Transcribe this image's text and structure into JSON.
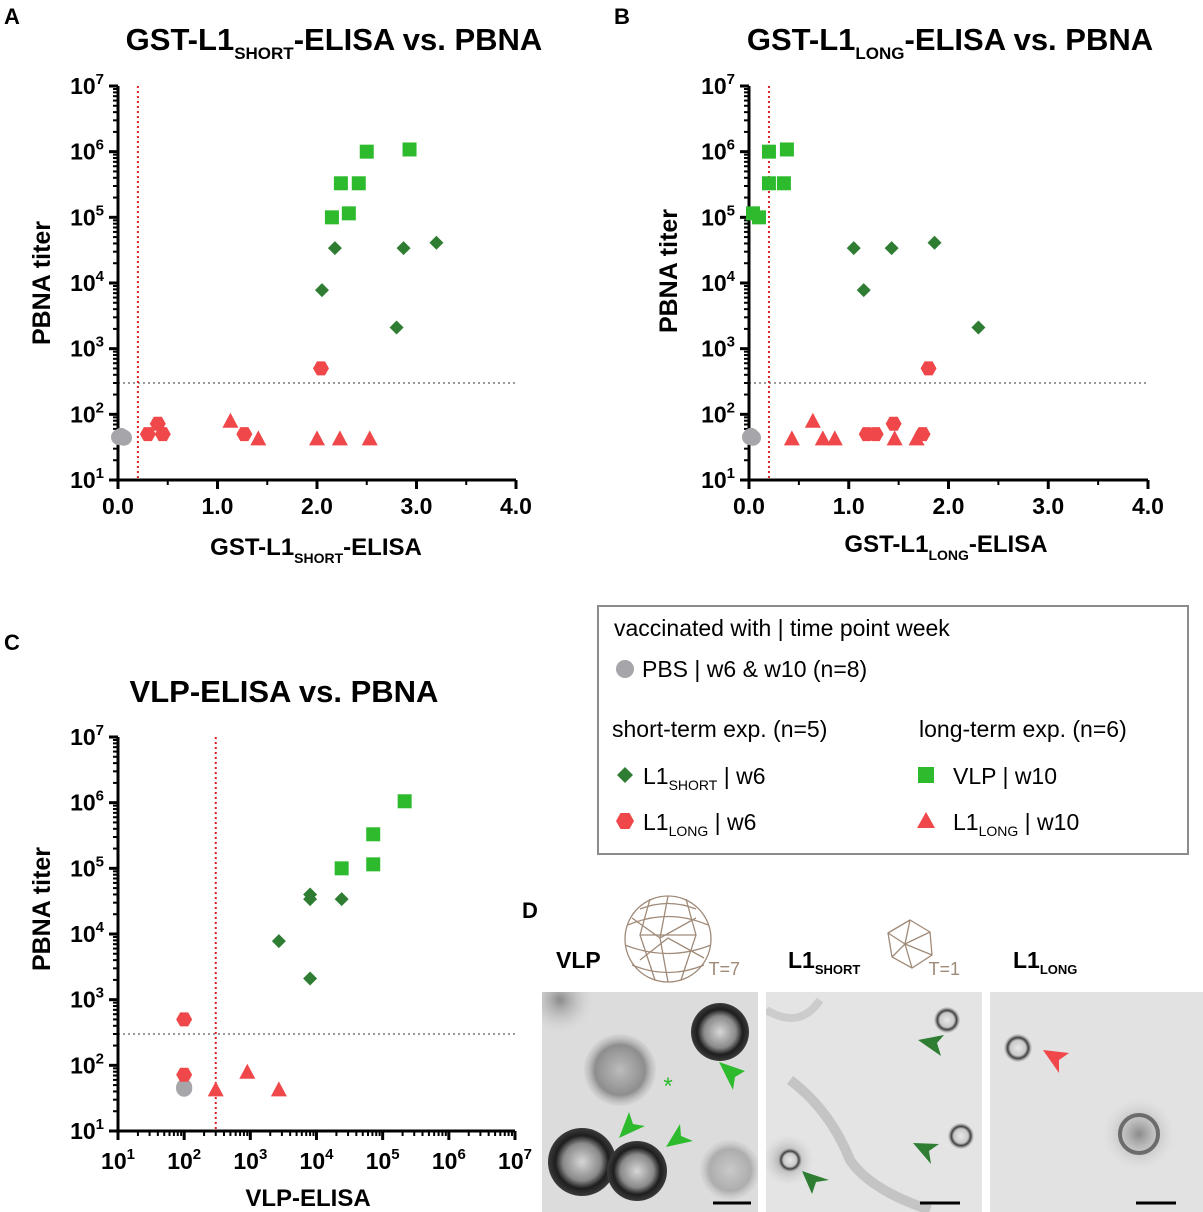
{
  "figure": {
    "panel_labels": [
      "A",
      "B",
      "C",
      "D"
    ],
    "colors": {
      "pbs": "#a6a6aa",
      "l1short": "#2e7d32",
      "vlp": "#2dbb2d",
      "l1long": "#f0484a",
      "cutoff_x": "#e02020",
      "cutoff_y": "#9a9a9a",
      "capsid": "#a08a78"
    }
  },
  "chart_data": [
    {
      "id": "A",
      "type": "scatter",
      "title_main": "GST-L1",
      "title_sub": "SHORT",
      "title_tail": "-ELISA vs. PBNA",
      "xlabel_main": "GST-L1",
      "xlabel_sub": "SHORT",
      "xlabel_tail": "-ELISA",
      "ylabel": "PBNA titer",
      "xscale": "linear",
      "xlim": [
        0,
        4
      ],
      "xticks": [
        0,
        1,
        2,
        3,
        4
      ],
      "xtick_labels": [
        "0.0",
        "1.0",
        "2.0",
        "3.0",
        "4.0"
      ],
      "yscale": "log",
      "ylim_exp": [
        1,
        7
      ],
      "yticks_exp": [
        1,
        2,
        3,
        4,
        5,
        6,
        7
      ],
      "cutoff_x": 0.2,
      "cutoff_y": 300,
      "series": [
        {
          "name": "PBS",
          "marker": "circle",
          "color": "#a6a6aa",
          "points": [
            [
              0.01,
              45
            ],
            [
              0.03,
              47
            ],
            [
              0.05,
              45
            ],
            [
              0.06,
              44
            ]
          ]
        },
        {
          "name": "L1SHORT w6",
          "marker": "diamond",
          "color": "#2e7d32",
          "points": [
            [
              2.05,
              7800
            ],
            [
              2.18,
              34000
            ],
            [
              2.8,
              2100
            ],
            [
              2.87,
              34000
            ],
            [
              3.2,
              41000
            ]
          ]
        },
        {
          "name": "L1LONG w6",
          "marker": "hexagon",
          "color": "#f0484a",
          "points": [
            [
              0.3,
              50
            ],
            [
              0.4,
              72
            ],
            [
              0.45,
              50
            ],
            [
              1.27,
              50
            ],
            [
              2.04,
              500
            ]
          ]
        },
        {
          "name": "VLP w10",
          "marker": "square",
          "color": "#2dbb2d",
          "points": [
            [
              2.15,
              100000
            ],
            [
              2.24,
              330000
            ],
            [
              2.32,
              115000
            ],
            [
              2.42,
              330000
            ],
            [
              2.5,
              1000000
            ],
            [
              2.93,
              1080000
            ]
          ]
        },
        {
          "name": "L1LONG w10",
          "marker": "triangle",
          "color": "#f0484a",
          "points": [
            [
              1.13,
              80
            ],
            [
              1.41,
              43
            ],
            [
              2.0,
              43
            ],
            [
              2.23,
              43
            ],
            [
              2.53,
              43
            ]
          ]
        }
      ]
    },
    {
      "id": "B",
      "type": "scatter",
      "title_main": "GST-L1",
      "title_sub": "LONG",
      "title_tail": "-ELISA vs. PBNA",
      "xlabel_main": "GST-L1",
      "xlabel_sub": "LONG",
      "xlabel_tail": "-ELISA",
      "ylabel": "PBNA titer",
      "xscale": "linear",
      "xlim": [
        0,
        4
      ],
      "xticks": [
        0,
        1,
        2,
        3,
        4
      ],
      "xtick_labels": [
        "0.0",
        "1.0",
        "2.0",
        "3.0",
        "4.0"
      ],
      "yscale": "log",
      "ylim_exp": [
        1,
        7
      ],
      "yticks_exp": [
        1,
        2,
        3,
        4,
        5,
        6,
        7
      ],
      "cutoff_x": 0.2,
      "cutoff_y": 300,
      "series": [
        {
          "name": "PBS",
          "marker": "circle",
          "color": "#a6a6aa",
          "points": [
            [
              0.01,
              45
            ],
            [
              0.02,
              47
            ],
            [
              0.03,
              45
            ],
            [
              0.04,
              44
            ]
          ]
        },
        {
          "name": "L1SHORT w6",
          "marker": "diamond",
          "color": "#2e7d32",
          "points": [
            [
              1.05,
              34000
            ],
            [
              1.15,
              7800
            ],
            [
              1.43,
              34000
            ],
            [
              1.86,
              41000
            ],
            [
              2.3,
              2100
            ]
          ]
        },
        {
          "name": "L1LONG w6",
          "marker": "hexagon",
          "color": "#f0484a",
          "points": [
            [
              1.18,
              50
            ],
            [
              1.27,
              50
            ],
            [
              1.45,
              72
            ],
            [
              1.74,
              50
            ],
            [
              1.8,
              500
            ]
          ]
        },
        {
          "name": "VLP w10",
          "marker": "square",
          "color": "#2dbb2d",
          "points": [
            [
              0.04,
              115000
            ],
            [
              0.1,
              100000
            ],
            [
              0.2,
              330000
            ],
            [
              0.2,
              1000000
            ],
            [
              0.35,
              330000
            ],
            [
              0.38,
              1080000
            ]
          ]
        },
        {
          "name": "L1LONG w10",
          "marker": "triangle",
          "color": "#f0484a",
          "points": [
            [
              0.43,
              43
            ],
            [
              0.64,
              80
            ],
            [
              0.74,
              43
            ],
            [
              0.86,
              43
            ],
            [
              1.46,
              43
            ],
            [
              1.68,
              43
            ]
          ]
        }
      ]
    },
    {
      "id": "C",
      "type": "scatter",
      "title_main": "VLP-ELISA vs. PBNA",
      "title_sub": "",
      "title_tail": "",
      "xlabel_main": "VLP-ELISA",
      "xlabel_sub": "",
      "xlabel_tail": "",
      "ylabel": "PBNA titer",
      "xscale": "log",
      "xlim_exp": [
        1,
        7
      ],
      "xticks_exp": [
        1,
        2,
        3,
        4,
        5,
        6,
        7
      ],
      "yscale": "log",
      "ylim_exp": [
        1,
        7
      ],
      "yticks_exp": [
        1,
        2,
        3,
        4,
        5,
        6,
        7
      ],
      "cutoff_x": 300,
      "cutoff_y": 300,
      "series": [
        {
          "name": "PBS",
          "marker": "circle",
          "color": "#a6a6aa",
          "points": [
            [
              100,
              45
            ],
            [
              100,
              47
            ],
            [
              100,
              44
            ]
          ]
        },
        {
          "name": "L1SHORT w6",
          "marker": "diamond",
          "color": "#2e7d32",
          "points": [
            [
              2700,
              7800
            ],
            [
              8000,
              2100
            ],
            [
              8000,
              34000
            ],
            [
              8000,
              40000
            ],
            [
              24000,
              34000
            ]
          ]
        },
        {
          "name": "L1LONG w6",
          "marker": "hexagon",
          "color": "#f0484a",
          "points": [
            [
              100,
              500
            ],
            [
              100,
              72
            ]
          ]
        },
        {
          "name": "VLP w10",
          "marker": "square",
          "color": "#2dbb2d",
          "points": [
            [
              24000,
              100000
            ],
            [
              72000,
              115000
            ],
            [
              72000,
              330000
            ],
            [
              215000,
              1050000
            ]
          ]
        },
        {
          "name": "L1LONG w10",
          "marker": "triangle",
          "color": "#f0484a",
          "points": [
            [
              300,
              43
            ],
            [
              900,
              80
            ],
            [
              2700,
              43
            ]
          ]
        }
      ]
    }
  ],
  "legend": {
    "header": "vaccinated with | time point week",
    "pbs": "PBS | w6 & w10 (n=8)",
    "short_heading": "short-term exp. (n=5)",
    "long_heading": "long-term exp. (n=6)",
    "l1short_main": "L1",
    "l1short_sub": "SHORT",
    "l1short_tail": " | w6",
    "l1long6_main": "L1",
    "l1long6_sub": "LONG",
    "l1long6_tail": " | w6",
    "vlp": "VLP | w10",
    "l1long10_main": "L1",
    "l1long10_sub": "LONG",
    "l1long10_tail": " | w10"
  },
  "panel_d": {
    "vlp_label": "VLP",
    "vlp_t": "T=7",
    "l1short_main": "L1",
    "l1short_sub": "SHORT",
    "l1short_t": "T=1",
    "l1long_main": "L1",
    "l1long_sub": "LONG",
    "asterisk": "*"
  }
}
